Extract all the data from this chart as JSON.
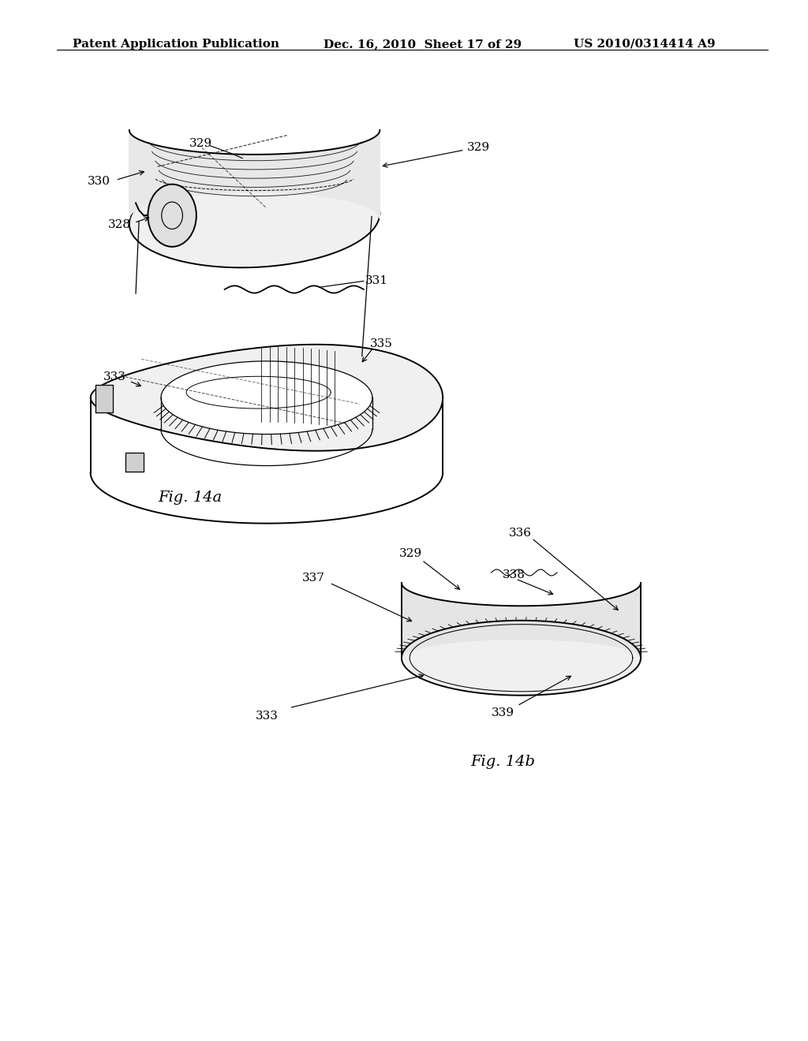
{
  "header_left": "Patent Application Publication",
  "header_middle": "Dec. 16, 2010  Sheet 17 of 29",
  "header_right": "US 2010/0314414 A9",
  "fig14a_label": "Fig. 14a",
  "fig14b_label": "Fig. 14b",
  "bg_color": "#ffffff",
  "line_color": "#000000",
  "header_fontsize": 11,
  "label_fontsize": 11,
  "fig_label_fontsize": 14
}
